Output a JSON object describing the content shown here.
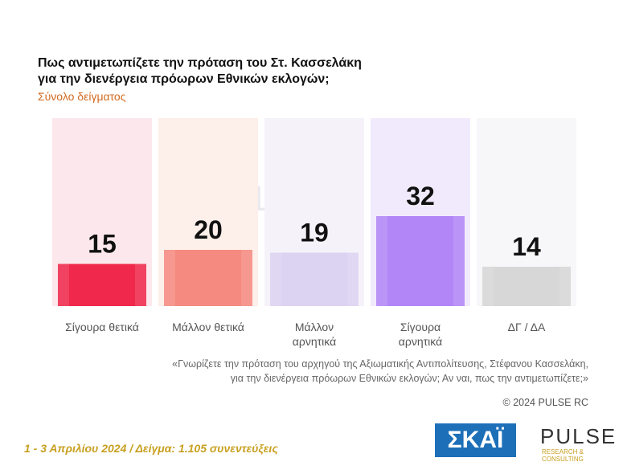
{
  "chart_data": {
    "type": "bar",
    "title": [
      "Πως αντιμετωπίζετε την πρόταση του Στ. Κασσελάκη",
      "για την διενέργεια πρόωρων Εθνικών εκλογών;"
    ],
    "subtitle": "Σύνολο δείγματος",
    "categories": [
      "Σίγουρα θετικά",
      "Μάλλον θετικά",
      "Μάλλον αρνητικά",
      "Σίγουρα αρνητικά",
      "ΔΓ / ΔΑ"
    ],
    "values": [
      15,
      20,
      19,
      32,
      14
    ],
    "colors": [
      "#f0284c",
      "#f58a80",
      "#dcd2f2",
      "#b286f7",
      "#d7d7d7"
    ],
    "panel_colors": [
      "#fce8ec",
      "#fdefea",
      "#f5f2fa",
      "#f1eafc",
      "#f7f6f8"
    ],
    "note": [
      "«Γνωρίζετε την πρόταση του αρχηγού της Αξιωματικής Αντιπολίτευσης, Στέφανου Κασσελάκη,",
      "για την διενέργεια πρόωρων Εθνικών εκλογών; Αν ναι, πως την αντιμετωπίζετε;»"
    ],
    "copyright": "© 2024 PULSE RC",
    "footer": "1 - 3  Απριλίου 2024  /  Δείγμα:  1.105 συνεντεύξεις",
    "logos": [
      "ΣΚΑΪ",
      "PULSE",
      "RESEARCH & CONSULTING"
    ]
  }
}
